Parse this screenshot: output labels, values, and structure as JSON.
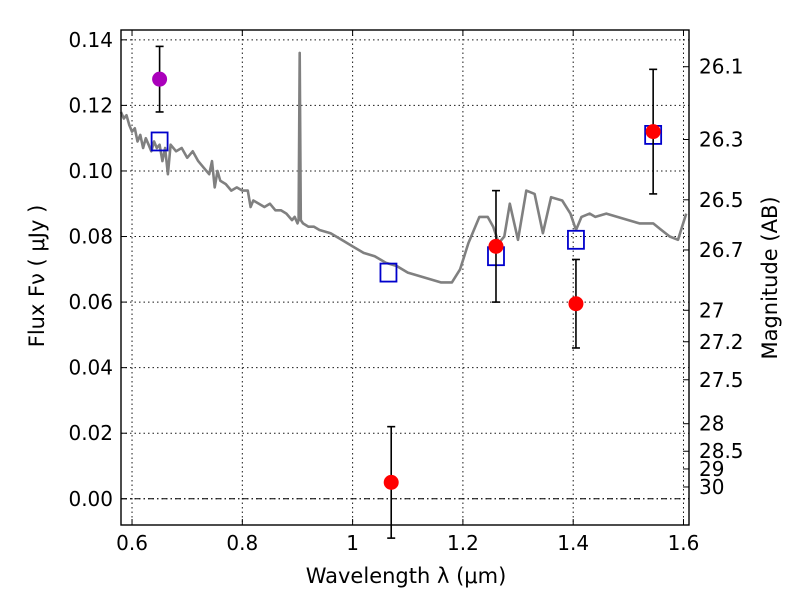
{
  "chart_data": {
    "type": "scatter",
    "xlabel": "Wavelength  λ (μm)",
    "ylabel": "Flux  Fν  ( μJy )",
    "ylabel_right": "Magnitude (AB)",
    "xlim": [
      0.58,
      1.61
    ],
    "ylim": [
      -0.008,
      0.143
    ],
    "x_ticks": [
      0.6,
      0.8,
      1.0,
      1.2,
      1.4,
      1.6
    ],
    "x_tick_labels": [
      "0.6",
      "0.8",
      "1",
      "1.2",
      "1.4",
      "1.6"
    ],
    "y_ticks": [
      0.0,
      0.02,
      0.04,
      0.06,
      0.08,
      0.1,
      0.12,
      0.14
    ],
    "y_tick_labels": [
      "0.00",
      "0.02",
      "0.04",
      "0.06",
      "0.08",
      "0.10",
      "0.12",
      "0.14"
    ],
    "right_ticks": [
      {
        "flux": 0.1318,
        "label": "26.1"
      },
      {
        "flux": 0.1096,
        "label": "26.3"
      },
      {
        "flux": 0.0912,
        "label": "26.5"
      },
      {
        "flux": 0.0759,
        "label": "26.7"
      },
      {
        "flux": 0.0575,
        "label": "27"
      },
      {
        "flux": 0.0479,
        "label": "27.2"
      },
      {
        "flux": 0.0363,
        "label": "27.5"
      },
      {
        "flux": 0.0229,
        "label": "28"
      },
      {
        "flux": 0.0145,
        "label": "28.5"
      },
      {
        "flux": 0.0091,
        "label": "29"
      },
      {
        "flux": 0.0036,
        "label": "30"
      }
    ],
    "grid": true,
    "model_spectrum": {
      "color": "#808080",
      "points": [
        [
          0.58,
          0.118
        ],
        [
          0.585,
          0.116
        ],
        [
          0.59,
          0.117
        ],
        [
          0.595,
          0.114
        ],
        [
          0.6,
          0.112
        ],
        [
          0.605,
          0.113
        ],
        [
          0.61,
          0.109
        ],
        [
          0.615,
          0.111
        ],
        [
          0.62,
          0.107
        ],
        [
          0.625,
          0.11
        ],
        [
          0.63,
          0.108
        ],
        [
          0.635,
          0.106
        ],
        [
          0.64,
          0.109
        ],
        [
          0.645,
          0.107
        ],
        [
          0.65,
          0.108
        ],
        [
          0.655,
          0.103
        ],
        [
          0.66,
          0.107
        ],
        [
          0.665,
          0.099
        ],
        [
          0.67,
          0.108
        ],
        [
          0.68,
          0.106
        ],
        [
          0.69,
          0.107
        ],
        [
          0.7,
          0.104
        ],
        [
          0.71,
          0.106
        ],
        [
          0.72,
          0.103
        ],
        [
          0.73,
          0.101
        ],
        [
          0.74,
          0.099
        ],
        [
          0.745,
          0.103
        ],
        [
          0.75,
          0.095
        ],
        [
          0.755,
          0.1
        ],
        [
          0.76,
          0.097
        ],
        [
          0.77,
          0.096
        ],
        [
          0.78,
          0.094
        ],
        [
          0.79,
          0.095
        ],
        [
          0.8,
          0.094
        ],
        [
          0.81,
          0.094
        ],
        [
          0.815,
          0.089
        ],
        [
          0.82,
          0.091
        ],
        [
          0.83,
          0.09
        ],
        [
          0.84,
          0.089
        ],
        [
          0.85,
          0.09
        ],
        [
          0.86,
          0.088
        ],
        [
          0.87,
          0.088
        ],
        [
          0.88,
          0.087
        ],
        [
          0.89,
          0.085
        ],
        [
          0.895,
          0.086
        ],
        [
          0.9,
          0.084
        ],
        [
          0.902,
          0.085
        ],
        [
          0.904,
          0.136
        ],
        [
          0.906,
          0.085
        ],
        [
          0.91,
          0.084
        ],
        [
          0.92,
          0.083
        ],
        [
          0.93,
          0.083
        ],
        [
          0.94,
          0.082
        ],
        [
          0.96,
          0.081
        ],
        [
          0.98,
          0.079
        ],
        [
          1.0,
          0.077
        ],
        [
          1.02,
          0.075
        ],
        [
          1.04,
          0.074
        ],
        [
          1.06,
          0.072
        ],
        [
          1.08,
          0.071
        ],
        [
          1.1,
          0.069
        ],
        [
          1.12,
          0.068
        ],
        [
          1.14,
          0.067
        ],
        [
          1.16,
          0.066
        ],
        [
          1.18,
          0.066
        ],
        [
          1.195,
          0.07
        ],
        [
          1.21,
          0.078
        ],
        [
          1.23,
          0.086
        ],
        [
          1.245,
          0.086
        ],
        [
          1.255,
          0.083
        ],
        [
          1.265,
          0.078
        ],
        [
          1.275,
          0.08
        ],
        [
          1.285,
          0.09
        ],
        [
          1.3,
          0.079
        ],
        [
          1.315,
          0.094
        ],
        [
          1.33,
          0.093
        ],
        [
          1.345,
          0.081
        ],
        [
          1.36,
          0.092
        ],
        [
          1.38,
          0.091
        ],
        [
          1.395,
          0.087
        ],
        [
          1.405,
          0.082
        ],
        [
          1.415,
          0.086
        ],
        [
          1.43,
          0.087
        ],
        [
          1.44,
          0.086
        ],
        [
          1.46,
          0.087
        ],
        [
          1.48,
          0.086
        ],
        [
          1.5,
          0.085
        ],
        [
          1.52,
          0.084
        ],
        [
          1.545,
          0.084
        ],
        [
          1.56,
          0.082
        ],
        [
          1.575,
          0.08
        ],
        [
          1.59,
          0.079
        ],
        [
          1.605,
          0.087
        ]
      ]
    },
    "synthetic_photometry": {
      "color": "#0000cc",
      "marker": "open-square",
      "points": [
        [
          0.65,
          0.109
        ],
        [
          1.065,
          0.069
        ],
        [
          1.26,
          0.074
        ],
        [
          1.405,
          0.079
        ],
        [
          1.545,
          0.111
        ]
      ]
    },
    "observed": [
      {
        "x": 0.65,
        "y": 0.128,
        "err": 0.01,
        "color": "#aa00bb"
      },
      {
        "x": 1.07,
        "y": 0.005,
        "err": 0.017,
        "color": "#ff0000"
      },
      {
        "x": 1.26,
        "y": 0.077,
        "err": 0.017,
        "color": "#ff0000"
      },
      {
        "x": 1.405,
        "y": 0.0595,
        "err": 0.0135,
        "color": "#ff0000"
      },
      {
        "x": 1.545,
        "y": 0.112,
        "err": 0.019,
        "color": "#ff0000"
      }
    ]
  }
}
